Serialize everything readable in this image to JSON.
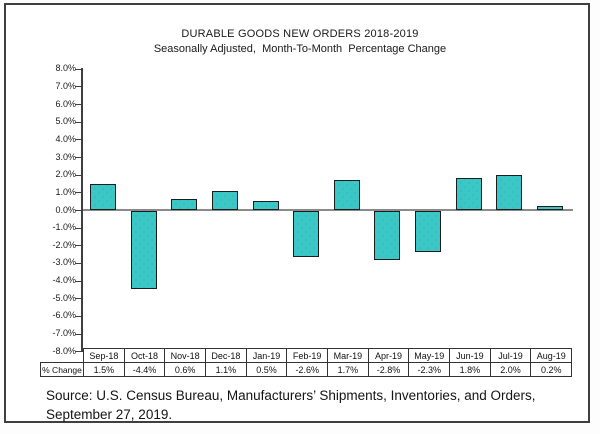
{
  "chart_data": {
    "type": "bar",
    "title": "DURABLE GOODS NEW ORDERS 2018-2019",
    "subtitle": "Seasonally Adjusted,  Month-To-Month  Percentage Change",
    "categories": [
      "Sep-18",
      "Oct-18",
      "Nov-18",
      "Dec-18",
      "Jan-19",
      "Feb-19",
      "Mar-19",
      "Apr-19",
      "May-19",
      "Jun-19",
      "Jul-19",
      "Aug-19"
    ],
    "values": [
      1.5,
      -4.4,
      0.6,
      1.1,
      0.5,
      -2.6,
      1.7,
      -2.8,
      -2.3,
      1.8,
      2.0,
      0.2
    ],
    "xlabel": "",
    "ylabel": "",
    "ylim": [
      -8,
      8
    ],
    "ytick_step": 1.0,
    "ytick_labels": [
      "8.0%",
      "7.0%",
      "6.0%",
      "5.0%",
      "4.0%",
      "3.0%",
      "2.0%",
      "1.0%",
      "0.0%",
      "-1.0%",
      "-2.0%",
      "-3.0%",
      "-4.0%",
      "-5.0%",
      "-6.0%",
      "-7.0%",
      "-8.0%"
    ],
    "grid": false,
    "legend": false,
    "bar_color": "#3CC7C7",
    "bar_dot_color": "#27A8A8",
    "bar_border_color": "#1D1D1D",
    "zero_line_color": "#8A8A8A",
    "axis_color": "#3F3F3F"
  },
  "table": {
    "row_label": "% Change",
    "columns": [
      "Sep-18",
      "Oct-18",
      "Nov-18",
      "Dec-18",
      "Jan-19",
      "Feb-19",
      "Mar-19",
      "Apr-19",
      "May-19",
      "Jun-19",
      "Jul-19",
      "Aug-19"
    ],
    "values": [
      "1.5%",
      "-4.4%",
      "0.6%",
      "1.1%",
      "0.5%",
      "-2.6%",
      "1.7%",
      "-2.8%",
      "-2.3%",
      "1.8%",
      "2.0%",
      "0.2%"
    ]
  },
  "source": {
    "line1": "Source: U.S. Census Bureau, Manufacturers’ Shipments, Inventories, and Orders,",
    "line2": "September 27, 2019."
  }
}
